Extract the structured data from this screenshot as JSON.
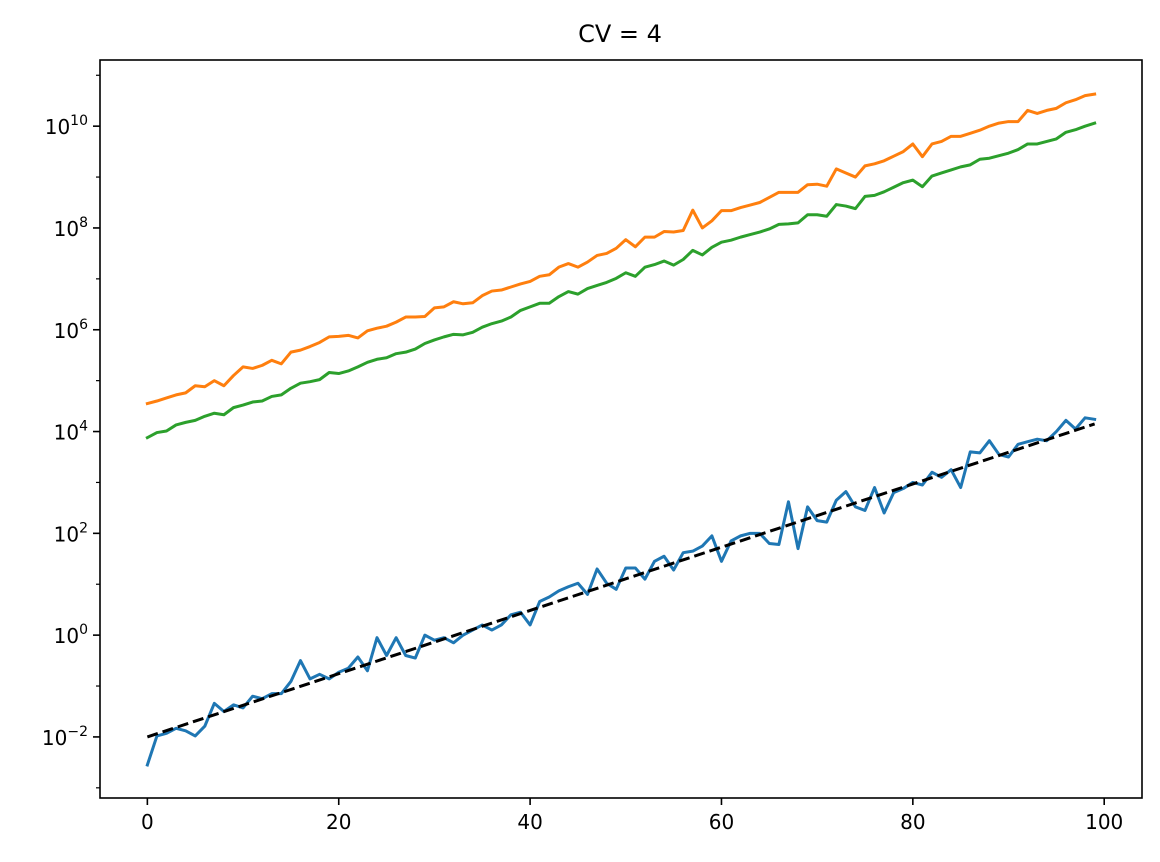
{
  "chart_data": {
    "type": "line",
    "title": "CV = 4",
    "xlabel": "",
    "ylabel": "",
    "xlim": [
      -4.95,
      103.95
    ],
    "ylim_log10": [
      -3.2,
      11.3
    ],
    "yscale": "log",
    "grid": false,
    "xticks": [
      0,
      20,
      40,
      60,
      80,
      100
    ],
    "xtick_labels": [
      "0",
      "20",
      "40",
      "60",
      "80",
      "100"
    ],
    "yticks": [
      {
        "base": "10",
        "exp": "−2",
        "value": -2
      },
      {
        "base": "10",
        "exp": "0",
        "value": 0
      },
      {
        "base": "10",
        "exp": "2",
        "value": 2
      },
      {
        "base": "10",
        "exp": "4",
        "value": 4
      },
      {
        "base": "10",
        "exp": "6",
        "value": 6
      },
      {
        "base": "10",
        "exp": "8",
        "value": 8
      },
      {
        "base": "10",
        "exp": "10",
        "value": 10
      }
    ],
    "series": [
      {
        "color": "#ff7f0e",
        "style": "solid",
        "x_start": 0,
        "x_step": 1,
        "log10_values": [
          4.55,
          4.6,
          4.66,
          4.72,
          4.76,
          4.9,
          4.88,
          5.0,
          4.9,
          5.1,
          5.27,
          5.24,
          5.3,
          5.4,
          5.33,
          5.56,
          5.6,
          5.67,
          5.75,
          5.86,
          5.87,
          5.89,
          5.84,
          5.98,
          6.03,
          6.07,
          6.15,
          6.25,
          6.25,
          6.26,
          6.43,
          6.45,
          6.55,
          6.51,
          6.53,
          6.67,
          6.76,
          6.78,
          6.84,
          6.9,
          6.95,
          7.05,
          7.08,
          7.23,
          7.3,
          7.23,
          7.33,
          7.46,
          7.5,
          7.6,
          7.77,
          7.63,
          7.82,
          7.82,
          7.93,
          7.92,
          7.95,
          8.35,
          8.0,
          8.14,
          8.34,
          8.34,
          8.4,
          8.45,
          8.5,
          8.6,
          8.7,
          8.7,
          8.7,
          8.85,
          8.86,
          8.82,
          9.16,
          9.08,
          9.0,
          9.22,
          9.26,
          9.32,
          9.41,
          9.5,
          9.65,
          9.4,
          9.65,
          9.7,
          9.8,
          9.8,
          9.86,
          9.92,
          10.0,
          10.06,
          10.09,
          10.09,
          10.31,
          10.25,
          10.31,
          10.35,
          10.46,
          10.52,
          10.6,
          10.63
        ]
      },
      {
        "color": "#2ca02c",
        "style": "solid",
        "x_start": 0,
        "x_step": 1,
        "log10_values": [
          3.88,
          3.98,
          4.01,
          4.13,
          4.18,
          4.22,
          4.3,
          4.36,
          4.33,
          4.47,
          4.52,
          4.58,
          4.6,
          4.69,
          4.72,
          4.85,
          4.95,
          4.98,
          5.02,
          5.16,
          5.14,
          5.19,
          5.27,
          5.36,
          5.42,
          5.45,
          5.53,
          5.56,
          5.62,
          5.73,
          5.8,
          5.86,
          5.91,
          5.9,
          5.95,
          6.05,
          6.12,
          6.17,
          6.25,
          6.38,
          6.45,
          6.52,
          6.52,
          6.65,
          6.75,
          6.7,
          6.81,
          6.87,
          6.93,
          7.01,
          7.12,
          7.05,
          7.23,
          7.28,
          7.35,
          7.27,
          7.38,
          7.56,
          7.47,
          7.62,
          7.72,
          7.76,
          7.82,
          7.87,
          7.92,
          7.98,
          8.07,
          8.08,
          8.1,
          8.26,
          8.26,
          8.23,
          8.46,
          8.43,
          8.38,
          8.62,
          8.64,
          8.71,
          8.8,
          8.89,
          8.94,
          8.81,
          9.02,
          9.08,
          9.14,
          9.2,
          9.24,
          9.35,
          9.37,
          9.42,
          9.47,
          9.54,
          9.65,
          9.65,
          9.7,
          9.75,
          9.88,
          9.93,
          10.0,
          10.06
        ]
      },
      {
        "color": "#1f77b4",
        "style": "solid",
        "x_start": 0,
        "x_step": 1,
        "log10_values": [
          -2.55,
          -1.98,
          -1.93,
          -1.83,
          -1.88,
          -1.98,
          -1.79,
          -1.34,
          -1.5,
          -1.37,
          -1.43,
          -1.2,
          -1.25,
          -1.15,
          -1.15,
          -0.91,
          -0.5,
          -0.86,
          -0.77,
          -0.86,
          -0.73,
          -0.65,
          -0.43,
          -0.7,
          -0.05,
          -0.4,
          -0.05,
          -0.4,
          -0.45,
          0.0,
          -0.1,
          -0.05,
          -0.15,
          0.0,
          0.1,
          0.2,
          0.1,
          0.2,
          0.4,
          0.45,
          0.2,
          0.66,
          0.75,
          0.87,
          0.95,
          1.02,
          0.8,
          1.3,
          1.02,
          0.9,
          1.32,
          1.32,
          1.1,
          1.45,
          1.55,
          1.28,
          1.62,
          1.65,
          1.75,
          1.95,
          1.45,
          1.85,
          1.95,
          2.0,
          2.0,
          1.8,
          1.78,
          2.62,
          1.7,
          2.52,
          2.25,
          2.22,
          2.65,
          2.82,
          2.52,
          2.45,
          2.9,
          2.4,
          2.8,
          2.88,
          3.0,
          2.95,
          3.2,
          3.1,
          3.25,
          2.9,
          3.6,
          3.58,
          3.82,
          3.55,
          3.5,
          3.75,
          3.8,
          3.85,
          3.82,
          4.0,
          4.22,
          4.05,
          4.27,
          4.24
        ]
      },
      {
        "color": "#000000",
        "style": "dashed",
        "x": [
          0,
          99
        ],
        "log10_values": [
          -2.0,
          4.15
        ]
      }
    ]
  }
}
